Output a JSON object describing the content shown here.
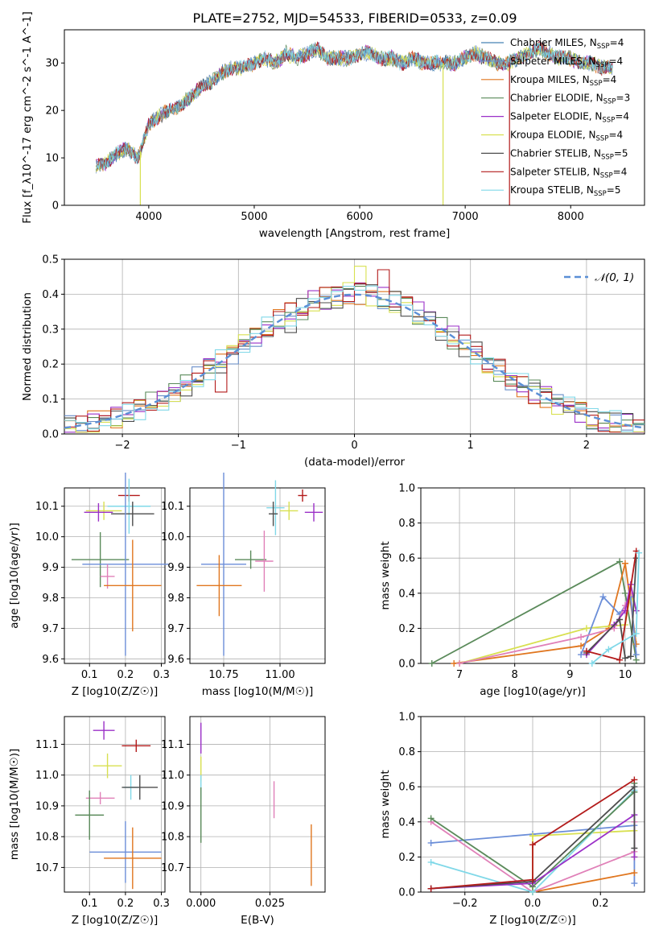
{
  "title": "PLATE=2752, MJD=54533, FIBERID=0533, z=0.09",
  "colors": {
    "Chabrier MILES": "#4682b4",
    "Salpeter MILES": "#6a8fc9",
    "Kroupa MILES": "#e0761f",
    "Chabrier ELODIE": "#5a8a5a",
    "Salpeter ELODIE": "#9b30c8",
    "Kroupa ELODIE": "#d8e050",
    "Chabrier STELIB": "#4d4d4d",
    "Salpeter STELIB": "#b31b1b",
    "Kroupa STELIB": "#80d8e8",
    "point_a": "#6b8ed8",
    "point_b": "#e080b8",
    "normal": "#5b8fd6"
  },
  "chart_data": [
    {
      "id": "spectrum",
      "type": "line",
      "xlabel": "wavelength [Angstrom, rest frame]",
      "ylabel": "Flux [f_λ10^-17 erg cm^-2 s^-1 A^-1]",
      "xlim": [
        3200,
        8700
      ],
      "ylim": [
        0,
        37
      ],
      "xticks": [
        4000,
        5000,
        6000,
        7000,
        8000
      ],
      "yticks": [
        0,
        10,
        20,
        30
      ],
      "legend": [
        "Chabrier MILES, N_SSP=4",
        "Salpeter MILES, N_SSP=4",
        "Kroupa MILES, N_SSP=4",
        "Chabrier ELODIE, N_SSP=3",
        "Salpeter ELODIE, N_SSP=4",
        "Kroupa ELODIE, N_SSP=4",
        "Chabrier STELIB, N_SSP=5",
        "Salpeter STELIB, N_SSP=4",
        "Kroupa STELIB, N_SSP=5"
      ],
      "legend_parts": [
        [
          "Chabrier MILES, N",
          "SSP",
          "=4"
        ],
        [
          "Salpeter MILES, N",
          "SSP",
          "=4"
        ],
        [
          "Kroupa MILES, N",
          "SSP",
          "=4"
        ],
        [
          "Chabrier ELODIE, N",
          "SSP",
          "=3"
        ],
        [
          "Salpeter ELODIE, N",
          "SSP",
          "=4"
        ],
        [
          "Kroupa ELODIE, N",
          "SSP",
          "=4"
        ],
        [
          "Chabrier STELIB, N",
          "SSP",
          "=5"
        ],
        [
          "Salpeter STELIB, N",
          "SSP",
          "=4"
        ],
        [
          "Kroupa STELIB, N",
          "SSP",
          "=5"
        ]
      ],
      "legend_placement": "upper right",
      "continuum": {
        "wavelength": [
          3500,
          3600,
          3700,
          3800,
          3900,
          4000,
          4100,
          4200,
          4300,
          4400,
          4500,
          4600,
          4700,
          4800,
          4900,
          5000,
          5100,
          5200,
          5300,
          5400,
          5500,
          5600,
          5700,
          5800,
          5900,
          6000,
          6100,
          6200,
          6300,
          6400,
          6500,
          6600,
          6700,
          6800,
          6900,
          7000,
          7100,
          7200,
          7300,
          7400,
          7500,
          7600,
          7700,
          7800,
          7900,
          8000,
          8100,
          8200,
          8300,
          8400
        ],
        "flux": [
          8,
          9,
          11,
          12,
          10,
          17,
          19,
          20,
          21,
          23,
          25,
          26,
          28,
          29,
          29,
          30,
          31,
          30,
          32,
          31,
          32,
          33,
          31,
          31,
          31,
          32,
          32,
          31,
          31,
          30,
          31,
          30,
          30,
          30,
          30,
          31,
          32,
          31,
          30,
          30,
          31,
          32,
          33,
          32,
          31,
          31,
          30,
          30,
          29,
          29
        ]
      },
      "spikes": [
        {
          "series": "Kroupa ELODIE",
          "wavelength": 3920
        },
        {
          "series": "Kroupa ELODIE",
          "wavelength": 6790
        },
        {
          "series": "Salpeter STELIB",
          "wavelength": 7420
        }
      ]
    },
    {
      "id": "residual-histogram",
      "type": "histogram",
      "xlabel": "(data-model)/error",
      "ylabel": "Normed distribution",
      "xlim": [
        -2.5,
        2.5
      ],
      "ylim": [
        0,
        0.5
      ],
      "xticks": [
        -2,
        -1,
        0,
        1,
        2
      ],
      "xtick_labels": [
        "−2",
        "−1",
        "0",
        "1",
        "2"
      ],
      "yticks": [
        0.0,
        0.1,
        0.2,
        0.3,
        0.4,
        0.5
      ],
      "ytick_labels": [
        "0.0",
        "0.1",
        "0.2",
        "0.3",
        "0.4",
        "0.5"
      ],
      "bin_width": 0.1,
      "grid": true,
      "legend": [
        "𝒩(0, 1)"
      ],
      "legend_placement": "upper right",
      "highlighted_bins": [
        {
          "series": "Kroupa ELODIE",
          "x": 0.0,
          "y": 0.48
        },
        {
          "series": "Salpeter STELIB",
          "x": 0.2,
          "y": 0.47
        },
        {
          "series": "Salpeter STELIB",
          "x": -1.2,
          "y": 0.12
        },
        {
          "series": "Chabrier STELIB",
          "x": -0.6,
          "y": 0.29
        }
      ]
    },
    {
      "id": "age-vs-Z",
      "type": "errorbar",
      "xlabel": "Z [log10(Z/Z☉)]",
      "ylabel": "age  [log10(age/yr)]",
      "xlim": [
        0.03,
        0.31
      ],
      "ylim": [
        9.585,
        10.16
      ],
      "xticks": [
        0.1,
        0.2,
        0.3
      ],
      "xtick_labels": [
        "0.1",
        "0.2",
        "0.3"
      ],
      "yticks": [
        9.6,
        9.7,
        9.8,
        9.9,
        10.0,
        10.1
      ],
      "ytick_labels": [
        "9.6",
        "9.7",
        "9.8",
        "9.9",
        "10.0",
        "10.1"
      ],
      "points": [
        {
          "series": "Salpeter STELIB",
          "x": 0.21,
          "xerr": 0.03,
          "y": 10.135,
          "yerr": 0.02
        },
        {
          "series": "Kroupa STELIB",
          "x": 0.21,
          "xerr": 0.06,
          "y": 10.1,
          "yerr": 0.09
        },
        {
          "series": "Kroupa ELODIE",
          "x": 0.14,
          "xerr": 0.05,
          "y": 10.085,
          "yerr": 0.03
        },
        {
          "series": "Salpeter ELODIE",
          "x": 0.125,
          "xerr": 0.04,
          "y": 10.08,
          "yerr": 0.03
        },
        {
          "series": "Chabrier STELIB",
          "x": 0.22,
          "xerr": 0.06,
          "y": 10.075,
          "yerr": 0.04
        },
        {
          "series": "Chabrier ELODIE",
          "x": 0.13,
          "xerr": 0.08,
          "y": 9.925,
          "yerr": 0.09
        },
        {
          "series": "point_a",
          "x": 0.2,
          "xerr": 0.12,
          "y": 9.91,
          "yerr": 0.3
        },
        {
          "series": "point_b",
          "x": 0.15,
          "xerr": 0.02,
          "y": 9.87,
          "yerr": 0.04
        },
        {
          "series": "Kroupa MILES",
          "x": 0.22,
          "xerr": 0.08,
          "y": 9.84,
          "yerr": 0.15
        }
      ]
    },
    {
      "id": "age-vs-mass",
      "type": "errorbar",
      "xlabel": "mass [log10(M/M☉)]",
      "ylabel": "",
      "xlim": [
        10.6,
        11.2
      ],
      "ylim": [
        9.585,
        10.16
      ],
      "xticks": [
        10.75,
        11.0
      ],
      "xtick_labels": [
        "10.75",
        "11.00"
      ],
      "yticks": [
        9.6,
        9.7,
        9.8,
        9.9,
        10.0,
        10.1
      ],
      "ytick_labels": [
        "9.6",
        "9.7",
        "9.8",
        "9.9",
        "10.0",
        "10.1"
      ],
      "points": [
        {
          "series": "Salpeter STELIB",
          "x": 11.1,
          "xerr": 0.02,
          "y": 10.135,
          "yerr": 0.02
        },
        {
          "series": "Kroupa STELIB",
          "x": 10.98,
          "xerr": 0.04,
          "y": 10.095,
          "yerr": 0.09
        },
        {
          "series": "Kroupa ELODIE",
          "x": 11.04,
          "xerr": 0.04,
          "y": 10.085,
          "yerr": 0.03
        },
        {
          "series": "Salpeter ELODIE",
          "x": 11.15,
          "xerr": 0.04,
          "y": 10.08,
          "yerr": 0.03
        },
        {
          "series": "Chabrier STELIB",
          "x": 10.97,
          "xerr": 0.02,
          "y": 10.075,
          "yerr": 0.04
        },
        {
          "series": "Chabrier ELODIE",
          "x": 10.87,
          "xerr": 0.07,
          "y": 9.925,
          "yerr": 0.03
        },
        {
          "series": "point_b",
          "x": 10.93,
          "xerr": 0.04,
          "y": 9.92,
          "yerr": 0.1
        },
        {
          "series": "point_a",
          "x": 10.75,
          "xerr": 0.1,
          "y": 9.91,
          "yerr": 0.3
        },
        {
          "series": "Kroupa MILES",
          "x": 10.73,
          "xerr": 0.1,
          "y": 9.84,
          "yerr": 0.1
        }
      ]
    },
    {
      "id": "mass-weight-vs-age",
      "type": "line",
      "xlabel": "age  [log10(age/yr)]",
      "ylabel": "mass weight",
      "xlim": [
        6.3,
        10.35
      ],
      "ylim": [
        0,
        1.0
      ],
      "xticks": [
        7,
        8,
        9,
        10
      ],
      "xtick_labels": [
        "7",
        "8",
        "9",
        "10"
      ],
      "yticks": [
        0.0,
        0.2,
        0.4,
        0.6,
        0.8,
        1.0
      ],
      "ytick_labels": [
        "0.0",
        "0.2",
        "0.4",
        "0.6",
        "0.8",
        "1.0"
      ],
      "series": [
        {
          "name": "Chabrier ELODIE",
          "x": [
            6.5,
            9.9,
            10.0,
            10.2
          ],
          "y": [
            0.0,
            0.58,
            0.4,
            0.02
          ]
        },
        {
          "name": "Kroupa MILES",
          "x": [
            6.9,
            9.2,
            9.7,
            10.0,
            10.2
          ],
          "y": [
            0.0,
            0.1,
            0.2,
            0.57,
            0.11
          ]
        },
        {
          "name": "Kroupa ELODIE",
          "x": [
            7.0,
            9.3,
            10.0,
            10.1,
            10.2
          ],
          "y": [
            0.0,
            0.2,
            0.22,
            0.4,
            0.3
          ]
        },
        {
          "name": "point_a",
          "x": [
            9.2,
            9.6,
            9.9,
            10.1,
            10.2
          ],
          "y": [
            0.05,
            0.38,
            0.28,
            0.38,
            0.05
          ]
        },
        {
          "name": "point_b",
          "x": [
            7.0,
            9.2,
            9.8,
            10.0,
            10.1
          ],
          "y": [
            0.0,
            0.15,
            0.2,
            0.33,
            0.4
          ]
        },
        {
          "name": "Salpeter ELODIE",
          "x": [
            9.3,
            9.8,
            10.0,
            10.1,
            10.2
          ],
          "y": [
            0.05,
            0.22,
            0.3,
            0.45,
            0.3
          ]
        },
        {
          "name": "Chabrier STELIB",
          "x": [
            9.3,
            9.9,
            10.0,
            10.1,
            10.2
          ],
          "y": [
            0.06,
            0.25,
            0.03,
            0.04,
            0.6
          ]
        },
        {
          "name": "Salpeter STELIB",
          "x": [
            9.3,
            9.9,
            10.2
          ],
          "y": [
            0.07,
            0.02,
            0.64
          ]
        },
        {
          "name": "Kroupa STELIB",
          "x": [
            9.4,
            9.7,
            10.2,
            10.25
          ],
          "y": [
            0.0,
            0.08,
            0.17,
            0.63
          ]
        }
      ]
    },
    {
      "id": "mass-vs-Z",
      "type": "errorbar",
      "xlabel": "Z [log10(Z/Z☉)]",
      "ylabel": "mass [log10(M/M☉)]",
      "xlim": [
        0.03,
        0.31
      ],
      "ylim": [
        10.62,
        11.19
      ],
      "xticks": [
        0.1,
        0.2,
        0.3
      ],
      "xtick_labels": [
        "0.1",
        "0.2",
        "0.3"
      ],
      "yticks": [
        10.7,
        10.8,
        10.9,
        11.0,
        11.1
      ],
      "ytick_labels": [
        "10.7",
        "10.8",
        "10.9",
        "11.0",
        "11.1"
      ],
      "points": [
        {
          "series": "Salpeter ELODIE",
          "x": 0.14,
          "xerr": 0.03,
          "y": 11.145,
          "yerr": 0.03
        },
        {
          "series": "Salpeter STELIB",
          "x": 0.23,
          "xerr": 0.04,
          "y": 11.095,
          "yerr": 0.02
        },
        {
          "series": "Kroupa ELODIE",
          "x": 0.15,
          "xerr": 0.04,
          "y": 11.03,
          "yerr": 0.04
        },
        {
          "series": "Kroupa STELIB",
          "x": 0.215,
          "xerr": 0.02,
          "y": 10.96,
          "yerr": 0.04
        },
        {
          "series": "Chabrier STELIB",
          "x": 0.24,
          "xerr": 0.05,
          "y": 10.96,
          "yerr": 0.04
        },
        {
          "series": "point_b",
          "x": 0.13,
          "xerr": 0.04,
          "y": 10.925,
          "yerr": 0.02
        },
        {
          "series": "Chabrier ELODIE",
          "x": 0.1,
          "xerr": 0.04,
          "y": 10.87,
          "yerr": 0.08
        },
        {
          "series": "point_a",
          "x": 0.2,
          "xerr": 0.1,
          "y": 10.75,
          "yerr": 0.1
        },
        {
          "series": "Kroupa MILES",
          "x": 0.22,
          "xerr": 0.08,
          "y": 10.73,
          "yerr": 0.1
        }
      ]
    },
    {
      "id": "mass-vs-ebv",
      "type": "errorbar",
      "xlabel": "E(B-V)",
      "ylabel": "",
      "xlim": [
        -0.004,
        0.045
      ],
      "ylim": [
        10.62,
        11.19
      ],
      "xticks": [
        0.0,
        0.025
      ],
      "xtick_labels": [
        "0.000",
        "0.025"
      ],
      "yticks": [
        10.7,
        10.8,
        10.9,
        11.0,
        11.1
      ],
      "ytick_labels": [
        "10.7",
        "10.8",
        "10.9",
        "11.0",
        "11.1"
      ],
      "points": [
        {
          "series": "Salpeter ELODIE",
          "x": 0.0,
          "y": 11.12,
          "yerr": 0.05
        },
        {
          "series": "Kroupa ELODIE",
          "x": 0.0,
          "y": 11.02,
          "yerr": 0.04
        },
        {
          "series": "Kroupa STELIB",
          "x": 0.0,
          "y": 10.96,
          "yerr": 0.04
        },
        {
          "series": "Chabrier ELODIE",
          "x": 0.0,
          "y": 10.87,
          "yerr": 0.09
        },
        {
          "series": "point_b",
          "x": 0.0265,
          "y": 10.92,
          "yerr": 0.06
        },
        {
          "series": "Kroupa MILES",
          "x": 0.04,
          "y": 10.74,
          "yerr": 0.1
        }
      ]
    },
    {
      "id": "mass-weight-vs-Z",
      "type": "line",
      "xlabel": "Z [log10(Z/Z☉)]",
      "ylabel": "mass weight",
      "xlim": [
        -0.33,
        0.33
      ],
      "ylim": [
        0,
        1.0
      ],
      "xticks": [
        -0.2,
        0.0,
        0.2
      ],
      "xtick_labels": [
        "−0.2",
        "0.0",
        "0.2"
      ],
      "yticks": [
        0.0,
        0.2,
        0.4,
        0.6,
        0.8,
        1.0
      ],
      "ytick_labels": [
        "0.0",
        "0.2",
        "0.4",
        "0.6",
        "0.8",
        "1.0"
      ],
      "series": [
        {
          "name": "point_a",
          "x": [
            -0.3,
            0.0,
            0.3,
            0.3
          ],
          "y": [
            0.28,
            0.33,
            0.38,
            0.05
          ]
        },
        {
          "name": "Kroupa MILES",
          "x": [
            0.0,
            0.3
          ],
          "y": [
            0.0,
            0.11
          ]
        },
        {
          "name": "point_b",
          "x": [
            -0.3,
            0.0,
            0.3,
            0.3
          ],
          "y": [
            0.4,
            0.0,
            0.23,
            0.4
          ]
        },
        {
          "name": "Kroupa ELODIE",
          "x": [
            0.0,
            0.0,
            0.3,
            0.3
          ],
          "y": [
            0.0,
            0.32,
            0.35,
            0.2
          ]
        },
        {
          "name": "Kroupa STELIB",
          "x": [
            -0.3,
            0.0,
            0.3,
            0.3
          ],
          "y": [
            0.17,
            0.0,
            0.58,
            0.6
          ]
        },
        {
          "name": "Chabrier ELODIE",
          "x": [
            -0.3,
            0.0,
            0.3,
            0.3
          ],
          "y": [
            0.42,
            0.03,
            0.57,
            0.62
          ]
        },
        {
          "name": "Salpeter ELODIE",
          "x": [
            -0.3,
            0.0,
            0.3,
            0.3
          ],
          "y": [
            0.02,
            0.05,
            0.44,
            0.2
          ]
        },
        {
          "name": "Chabrier STELIB",
          "x": [
            -0.3,
            0.0,
            0.3,
            0.3
          ],
          "y": [
            0.02,
            0.06,
            0.6,
            0.25
          ]
        },
        {
          "name": "Salpeter STELIB",
          "x": [
            -0.3,
            0.0,
            0.0,
            0.3
          ],
          "y": [
            0.02,
            0.07,
            0.27,
            0.64
          ]
        }
      ]
    }
  ]
}
